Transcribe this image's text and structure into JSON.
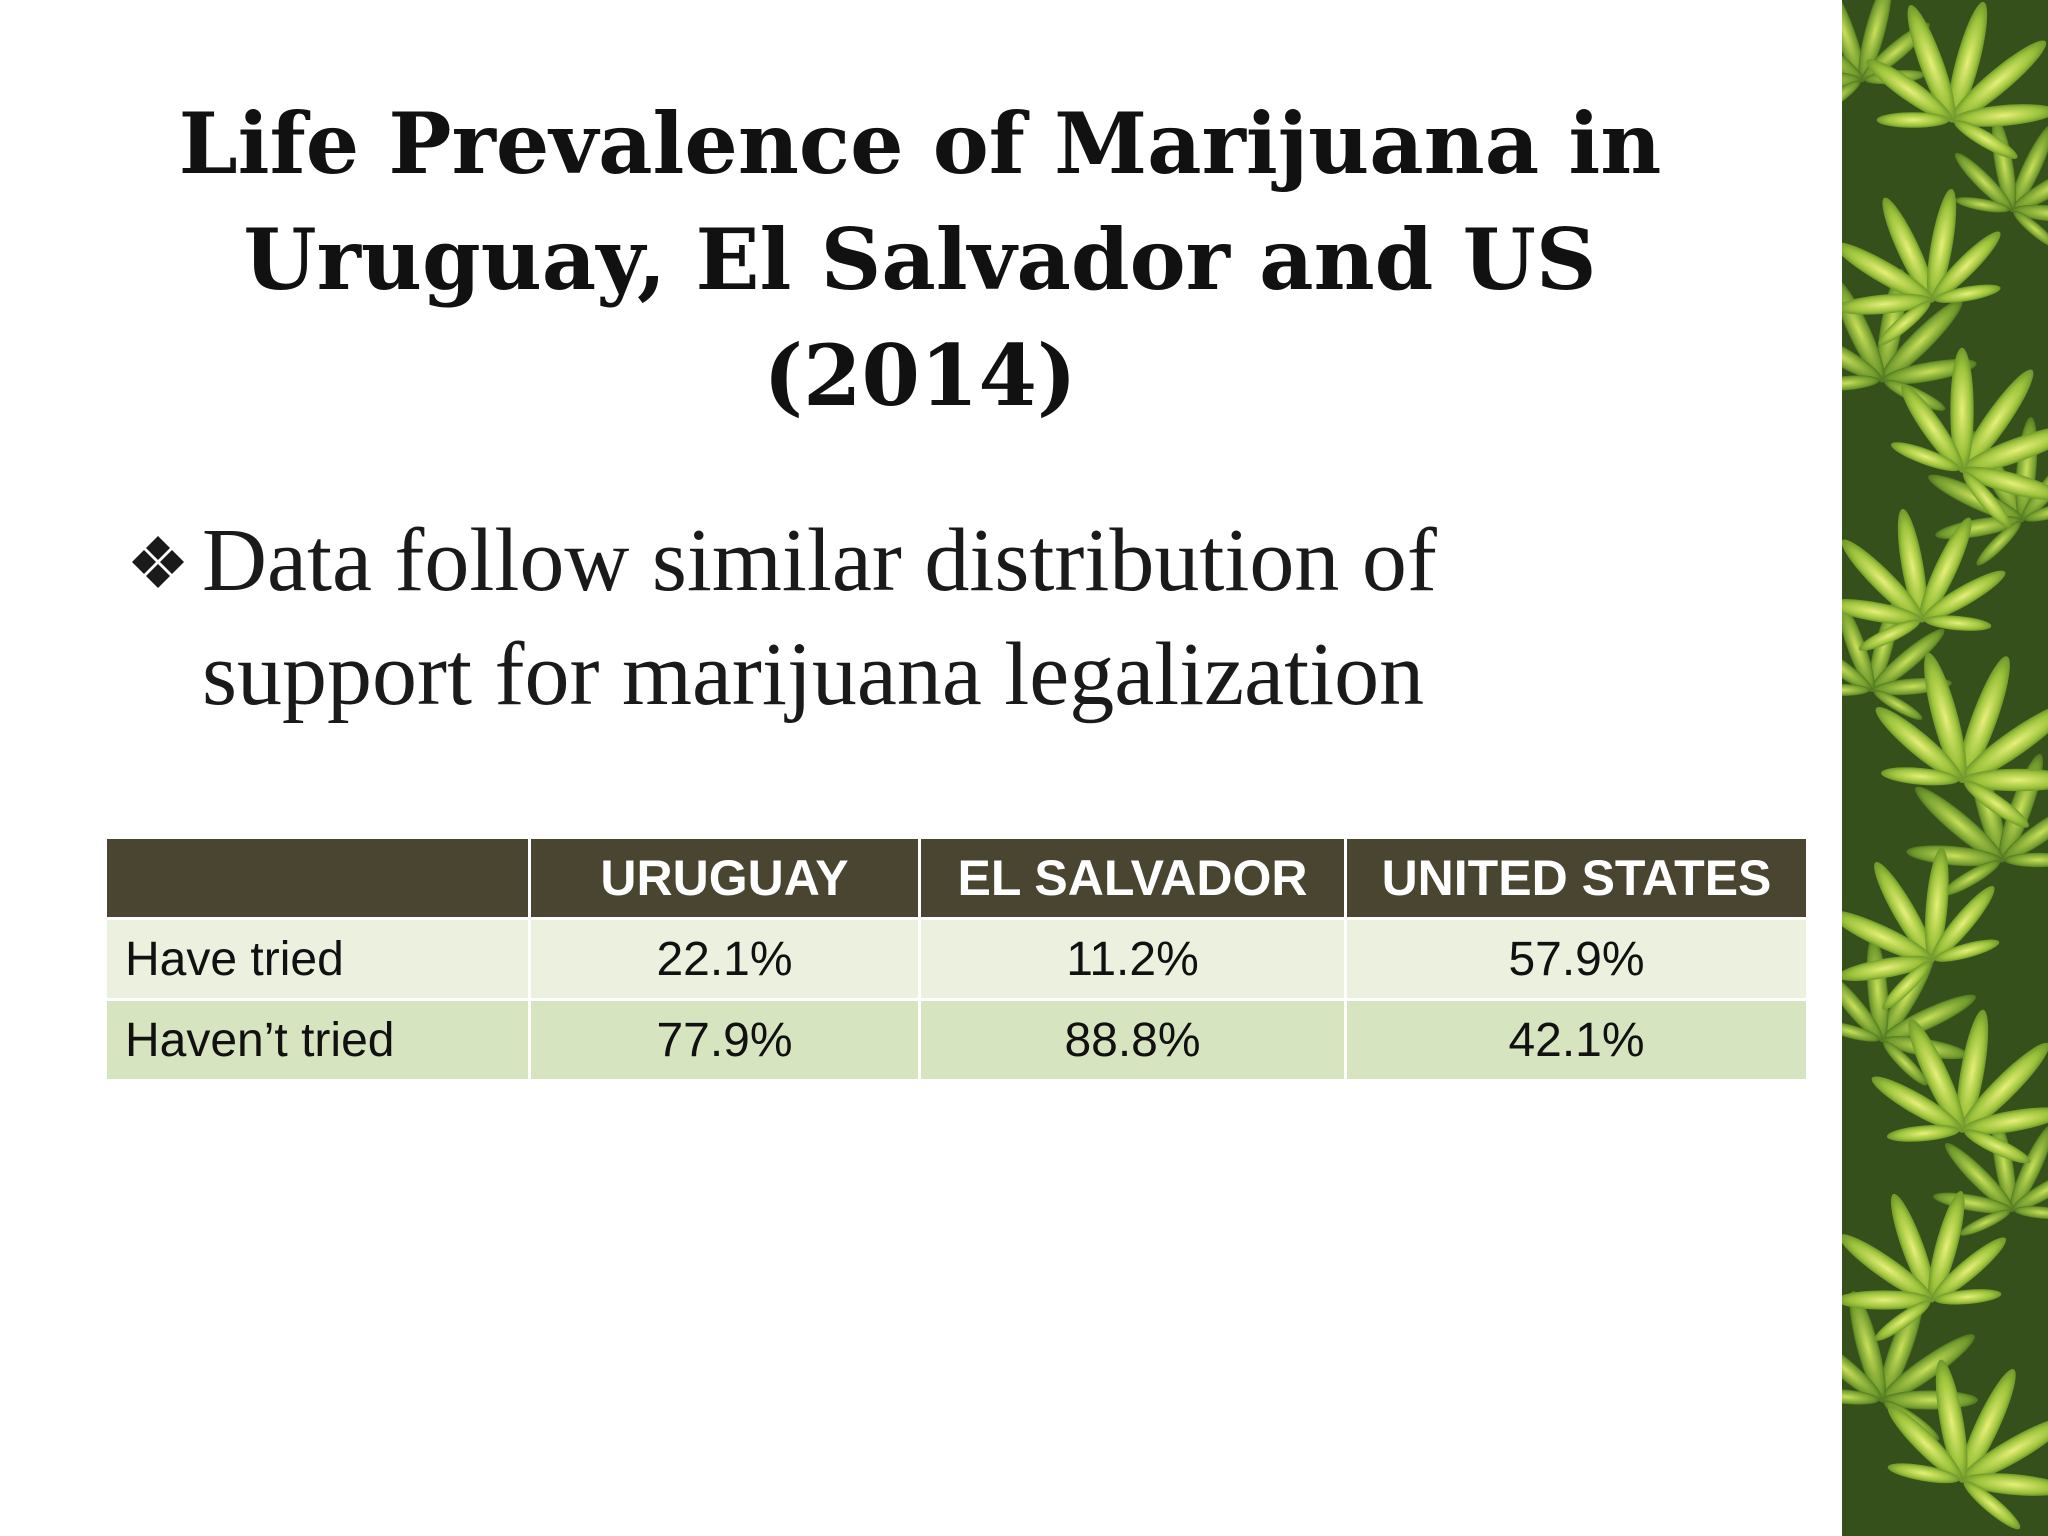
{
  "title": {
    "line1": "Life Prevalence of Marijuana in",
    "line2": "Uruguay, El Salvador and US (2014)"
  },
  "bullet": {
    "icon": "four-diamond-bullet-icon",
    "line1": "Data follow similar distribution of",
    "line2": "support for marijuana legalization"
  },
  "table": {
    "headers": [
      "",
      "URUGUAY",
      "EL SALVADOR",
      "UNITED STATES"
    ],
    "rows": [
      {
        "label": "Have tried",
        "values": [
          "22.1%",
          "11.2%",
          "57.9%"
        ]
      },
      {
        "label": "Haven’t tried",
        "values": [
          "77.9%",
          "88.8%",
          "42.1%"
        ]
      }
    ]
  },
  "colors": {
    "header_bg": "#4a4530",
    "row_odd": "#ebf1de",
    "row_even": "#d6e5bf",
    "leaf_bg": "#3e5a1c"
  },
  "decoration": {
    "side_image": "cannabis-leaves-image"
  }
}
